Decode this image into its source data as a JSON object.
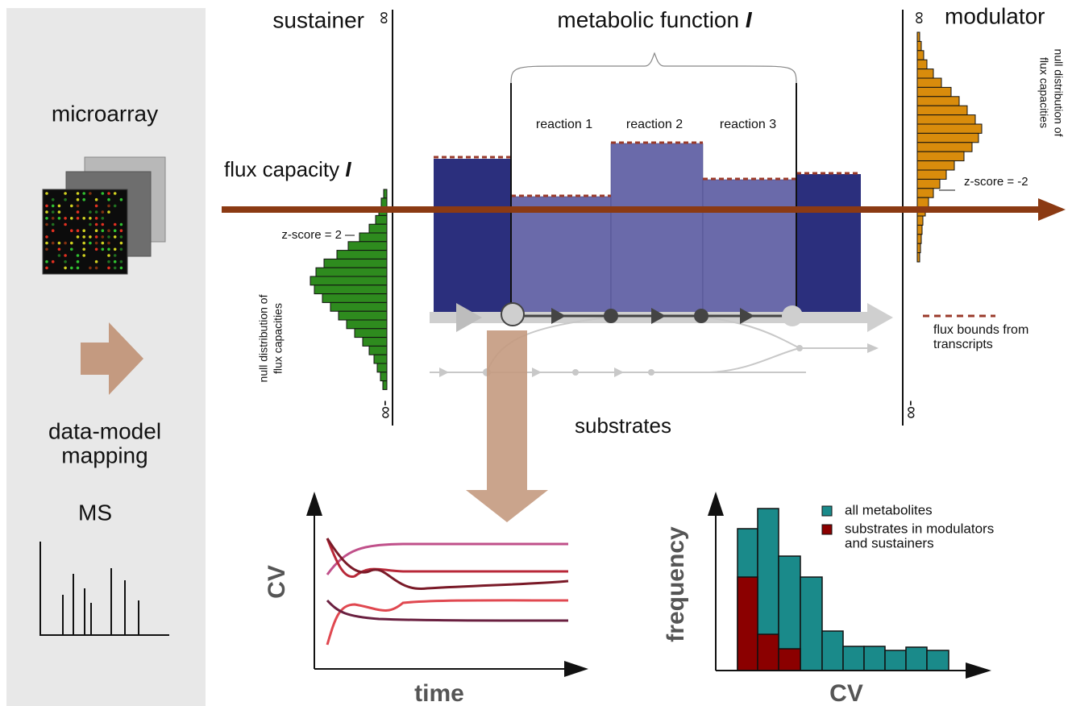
{
  "sidebar": {
    "microarray": "microarray",
    "mapping_label": [
      "data-model",
      "mapping"
    ],
    "ms": "MS"
  },
  "diagram": {
    "sustainer": "sustainer",
    "modulator": "modulator",
    "function_title": {
      "text": "metabolic function",
      "symbol": "I"
    },
    "flux_capacity": {
      "text": "flux capacity",
      "symbol": "I"
    },
    "reactions": [
      "reaction 1",
      "reaction 2",
      "reaction 3"
    ],
    "substrates": "substrates",
    "infinity_labels": {
      "sustainer_top": "∞",
      "sustainer_bottom": "-∞",
      "modulator_top": "∞",
      "modulator_bottom": "-∞"
    },
    "left_null": {
      "lines": [
        "null distribution of",
        "flux capacities"
      ],
      "zscore": "z-score = 2"
    },
    "right_null": {
      "lines": [
        "null distribution of",
        "flux capacities"
      ],
      "zscore": "z-score = -2"
    },
    "legend_flux_bounds": [
      "flux bounds from",
      "transcripts"
    ]
  },
  "cv_panel": {
    "y_label": "CV",
    "x_label": "time"
  },
  "histogram_panel": {
    "y_label": "frequency",
    "x_label": "CV",
    "legend": [
      "all metabolites",
      [
        "substrates in modulators",
        "and sustainers"
      ]
    ]
  }
}
